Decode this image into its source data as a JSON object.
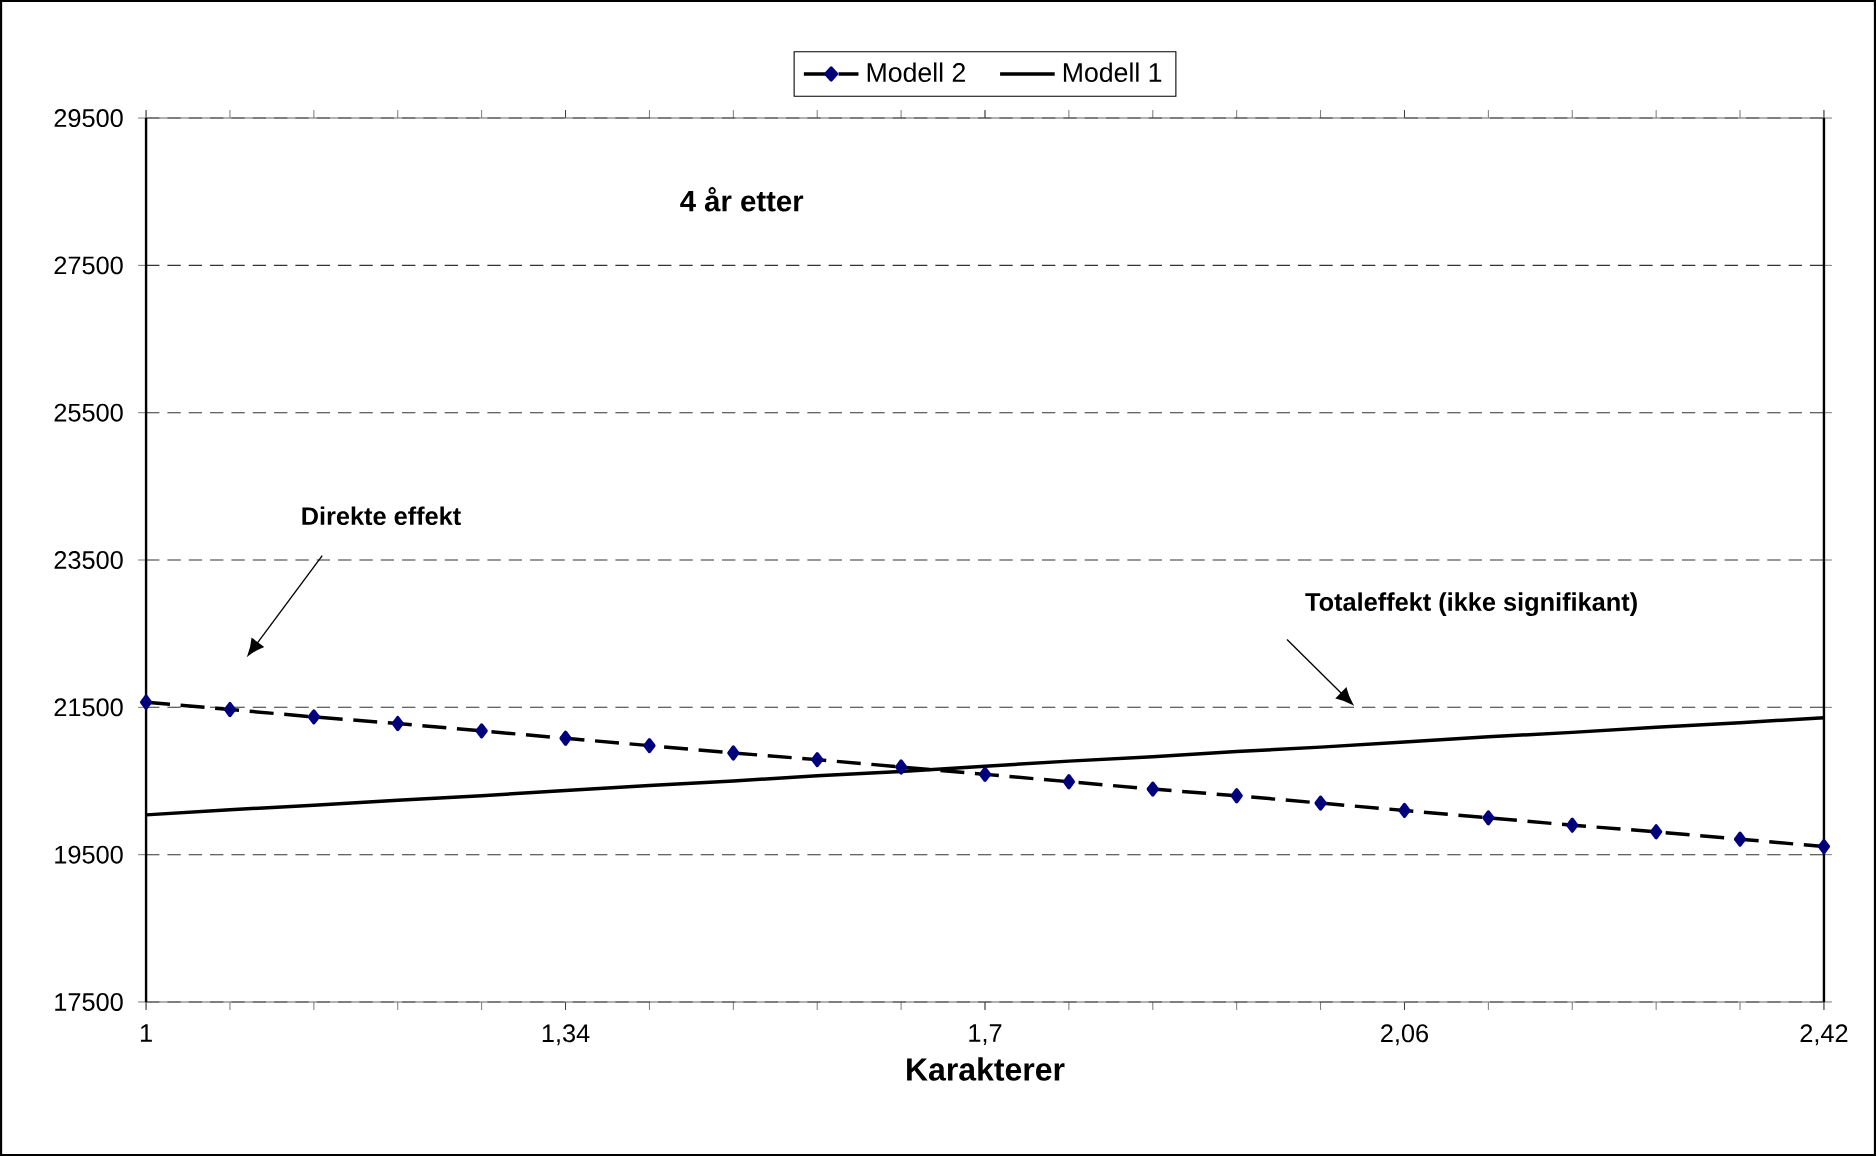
{
  "chart_data": {
    "type": "line",
    "title": "4 år etter",
    "xlabel": "Karakterer",
    "categories": [
      "1",
      null,
      null,
      null,
      null,
      "1,34",
      null,
      null,
      null,
      null,
      "1,7",
      null,
      null,
      null,
      null,
      "2,06",
      null,
      null,
      null,
      null,
      "2,42"
    ],
    "series": [
      {
        "name": "Modell 2",
        "color": "#000000",
        "line_style": "dashed",
        "marker": "diamond",
        "values": [
          21570,
          21470,
          21370,
          21280,
          21180,
          21080,
          20980,
          20880,
          20790,
          20690,
          20590,
          20490,
          20390,
          20300,
          20200,
          20100,
          20000,
          19900,
          19810,
          19710,
          19610
        ]
      },
      {
        "name": "Modell 1",
        "color": "#000000",
        "line_style": "solid",
        "marker": "none",
        "values": [
          20040,
          20110,
          20170,
          20240,
          20300,
          20370,
          20440,
          20500,
          20570,
          20630,
          20700,
          20770,
          20830,
          20900,
          20960,
          21030,
          21100,
          21160,
          21230,
          21290,
          21360
        ]
      }
    ],
    "ylim": [
      17500,
      29500
    ],
    "yticks": [
      17500,
      19500,
      21500,
      23500,
      25500,
      27500,
      29500
    ],
    "grid": "y",
    "legend": "top",
    "annotations": [
      "Direkte effekt",
      "Totaleffekt (ikke signifikant)"
    ]
  }
}
